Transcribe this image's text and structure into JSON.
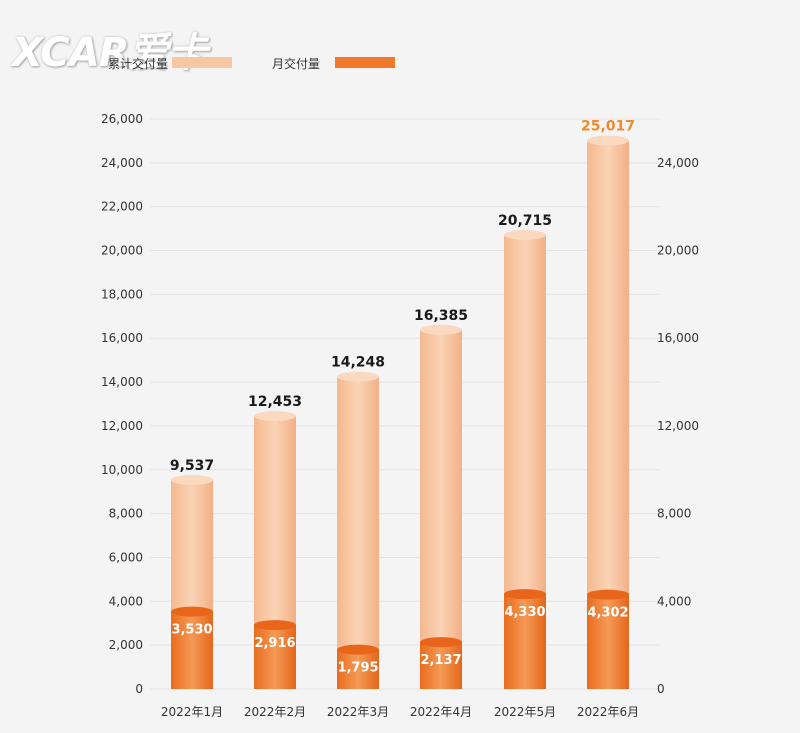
{
  "watermark": {
    "text": "XCAR爱卡"
  },
  "legend": {
    "items": [
      {
        "label": "累计交付量",
        "color": "#f8c6a3"
      },
      {
        "label": "月交付量",
        "color": "#f07a2a"
      }
    ]
  },
  "colors": {
    "cumulative": "#f8c6a3",
    "cumulative_top": "#fbd9c0",
    "monthly": "#f07a2a",
    "monthly_top": "#e8651a",
    "highlight_label": "#f08a2c",
    "axis_text": "#333333",
    "grid": "#e4e4e4"
  },
  "chart_data": {
    "type": "bar",
    "title": "",
    "xlabel": "",
    "ylabel": "",
    "categories": [
      "2022年1月",
      "2022年2月",
      "2022年3月",
      "2022年4月",
      "2022年5月",
      "2022年6月"
    ],
    "series": [
      {
        "name": "累计交付量",
        "values": [
          9537,
          12453,
          14248,
          16385,
          20715,
          25017
        ]
      },
      {
        "name": "月交付量",
        "values": [
          3530,
          2916,
          1795,
          2137,
          4330,
          4302
        ]
      }
    ],
    "value_labels": {
      "cumulative": [
        "9,537",
        "12,453",
        "14,248",
        "16,385",
        "20,715",
        "25,017"
      ],
      "monthly": [
        "3,530",
        "2,916",
        "1,795",
        "2,137",
        "4,330",
        "4,302"
      ]
    },
    "ylim": [
      0,
      26000
    ],
    "left_ticks": [
      "0",
      "2,000",
      "4,000",
      "6,000",
      "8,000",
      "10,000",
      "12,000",
      "14,000",
      "16,000",
      "18,000",
      "20,000",
      "22,000",
      "24,000",
      "26,000"
    ],
    "left_tick_values": [
      0,
      2000,
      4000,
      6000,
      8000,
      10000,
      12000,
      14000,
      16000,
      18000,
      20000,
      22000,
      24000,
      26000
    ],
    "right_ticks": [
      "0",
      "4,000",
      "8,000",
      "12,000",
      "16,000",
      "20,000",
      "24,000"
    ],
    "right_tick_values": [
      0,
      4000,
      8000,
      12000,
      16000,
      20000,
      24000
    ],
    "grid": true,
    "legend_position": "top-left",
    "highlighted_category": "2022年6月"
  }
}
